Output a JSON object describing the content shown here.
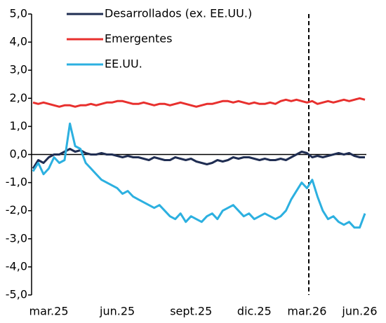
{
  "chart_data": {
    "type": "line",
    "categories": [
      null,
      null,
      null,
      "mar.25",
      null,
      null,
      null,
      null,
      null,
      null,
      null,
      null,
      null,
      null,
      null,
      null,
      "jun.25",
      null,
      null,
      null,
      null,
      null,
      null,
      null,
      null,
      null,
      null,
      null,
      null,
      null,
      "sept.25",
      null,
      null,
      null,
      null,
      null,
      null,
      null,
      null,
      null,
      null,
      null,
      "dic.25",
      null,
      null,
      null,
      null,
      null,
      null,
      null,
      null,
      null,
      "mar.26",
      null,
      null,
      null,
      null,
      null,
      null,
      null,
      null,
      null,
      "jun.26",
      null
    ],
    "series": [
      {
        "name": "Desarrollados (ex. EE.UU.)",
        "color": "#1f2d52",
        "values": [
          -0.5,
          -0.2,
          -0.3,
          -0.1,
          0.0,
          0.0,
          0.1,
          0.2,
          0.1,
          0.15,
          0.05,
          0.0,
          0.0,
          0.05,
          0.0,
          0.0,
          -0.05,
          -0.1,
          -0.05,
          -0.1,
          -0.1,
          -0.15,
          -0.2,
          -0.1,
          -0.15,
          -0.2,
          -0.2,
          -0.1,
          -0.15,
          -0.2,
          -0.15,
          -0.25,
          -0.3,
          -0.35,
          -0.3,
          -0.2,
          -0.25,
          -0.2,
          -0.1,
          -0.15,
          -0.1,
          -0.1,
          -0.15,
          -0.2,
          -0.15,
          -0.2,
          -0.2,
          -0.15,
          -0.2,
          -0.1,
          0.0,
          0.1,
          0.05,
          -0.1,
          -0.05,
          -0.1,
          -0.05,
          0.0,
          0.05,
          0.0,
          0.05,
          -0.05,
          -0.1,
          -0.1
        ]
      },
      {
        "name": "Emergentes",
        "color": "#e8302e",
        "values": [
          1.85,
          1.8,
          1.85,
          1.8,
          1.75,
          1.7,
          1.75,
          1.75,
          1.7,
          1.75,
          1.75,
          1.8,
          1.75,
          1.8,
          1.85,
          1.85,
          1.9,
          1.9,
          1.85,
          1.8,
          1.8,
          1.85,
          1.8,
          1.75,
          1.8,
          1.8,
          1.75,
          1.8,
          1.85,
          1.8,
          1.75,
          1.7,
          1.75,
          1.8,
          1.8,
          1.85,
          1.9,
          1.9,
          1.85,
          1.9,
          1.85,
          1.8,
          1.85,
          1.8,
          1.8,
          1.85,
          1.8,
          1.9,
          1.95,
          1.9,
          1.95,
          1.9,
          1.85,
          1.9,
          1.8,
          1.85,
          1.9,
          1.85,
          1.9,
          1.95,
          1.9,
          1.95,
          2.0,
          1.95
        ]
      },
      {
        "name": "EE.UU.",
        "color": "#2cb0e0",
        "values": [
          -0.6,
          -0.3,
          -0.7,
          -0.5,
          -0.1,
          -0.3,
          -0.2,
          1.1,
          0.3,
          0.2,
          -0.3,
          -0.5,
          -0.7,
          -0.9,
          -1.0,
          -1.1,
          -1.2,
          -1.4,
          -1.3,
          -1.5,
          -1.6,
          -1.7,
          -1.8,
          -1.9,
          -1.8,
          -2.0,
          -2.2,
          -2.3,
          -2.1,
          -2.4,
          -2.2,
          -2.3,
          -2.4,
          -2.2,
          -2.1,
          -2.3,
          -2.0,
          -1.9,
          -1.8,
          -2.0,
          -2.2,
          -2.1,
          -2.3,
          -2.2,
          -2.1,
          -2.2,
          -2.3,
          -2.2,
          -2.0,
          -1.6,
          -1.3,
          -1.0,
          -1.2,
          -0.9,
          -1.5,
          -2.0,
          -2.3,
          -2.2,
          -2.4,
          -2.5,
          -2.4,
          -2.6,
          -2.6,
          -2.1
        ]
      }
    ],
    "ylim": [
      -5,
      5
    ],
    "yticks": [
      {
        "value": -5,
        "label": "-5,0"
      },
      {
        "value": -4,
        "label": "-4,0"
      },
      {
        "value": -3,
        "label": "-3,0"
      },
      {
        "value": -2,
        "label": "-2,0"
      },
      {
        "value": -1,
        "label": "-1,0"
      },
      {
        "value": 0,
        "label": "0,0"
      },
      {
        "value": 1,
        "label": "1,0"
      },
      {
        "value": 2,
        "label": "2,0"
      },
      {
        "value": 3,
        "label": "3,0"
      },
      {
        "value": 4,
        "label": "4,0"
      },
      {
        "value": 5,
        "label": "5,0"
      }
    ],
    "legend": "top-left"
  }
}
